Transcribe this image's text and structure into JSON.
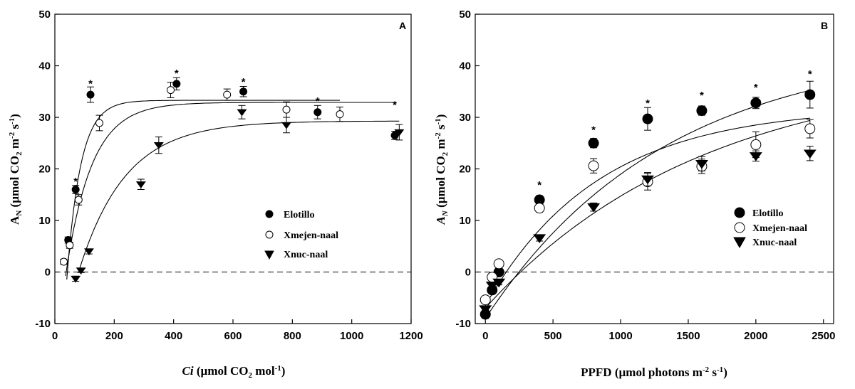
{
  "chart_data": [
    {
      "type": "scatter",
      "panel_label": "A",
      "title": "",
      "xlabel_italic": "Ci",
      "xlabel_main": " (µmol CO",
      "xlabel_sub": "2",
      "xlabel_rest": " mol",
      "xlabel_sup": "-1",
      "xlabel_close": ")",
      "ylabel_main": "A",
      "ylabel_sub": "N",
      "ylabel_mid": " (µmol CO",
      "ylabel_sub2": "2",
      "ylabel_m": " m",
      "ylabel_sup1": "-2",
      "ylabel_s": " s",
      "ylabel_sup2": "-1",
      "ylabel_close": ")",
      "xlim": [
        0,
        1200
      ],
      "ylim": [
        -10,
        50
      ],
      "xticks": [
        0,
        200,
        400,
        600,
        800,
        1000,
        1200
      ],
      "yticks": [
        -10,
        0,
        10,
        20,
        30,
        40,
        50
      ],
      "reference_line": 0,
      "legend": [
        {
          "name": "Elotillo",
          "marker": "filled-circle"
        },
        {
          "name": "Xmejen-naal",
          "marker": "open-circle"
        },
        {
          "name": "Xnuc-naal",
          "marker": "filled-triangle-down"
        }
      ],
      "series": [
        {
          "name": "Elotillo",
          "marker": "filled-circle",
          "points": [
            {
              "x": 45,
              "y": 6.2,
              "err": 0.6
            },
            {
              "x": 70,
              "y": 16.0,
              "err": 0.8
            },
            {
              "x": 120,
              "y": 34.4,
              "err": 1.5
            },
            {
              "x": 410,
              "y": 36.5,
              "err": 1.2
            },
            {
              "x": 635,
              "y": 35.0,
              "err": 1.0
            },
            {
              "x": 885,
              "y": 31.0,
              "err": 1.3
            },
            {
              "x": 1145,
              "y": 26.5,
              "err": 0.8
            }
          ],
          "fit": {
            "A": 33.3,
            "k": 0.0215,
            "x0": 42,
            "xmin": 40,
            "xmax": 960
          }
        },
        {
          "name": "Xmejen-naal",
          "marker": "open-circle",
          "points": [
            {
              "x": 30,
              "y": 2.0,
              "err": 0.5
            },
            {
              "x": 50,
              "y": 5.2,
              "err": 0.6
            },
            {
              "x": 80,
              "y": 14.0,
              "err": 1.0
            },
            {
              "x": 150,
              "y": 28.9,
              "err": 1.5
            },
            {
              "x": 390,
              "y": 35.3,
              "err": 1.5
            },
            {
              "x": 580,
              "y": 34.4,
              "err": 1.1
            },
            {
              "x": 780,
              "y": 31.5,
              "err": 1.5
            },
            {
              "x": 960,
              "y": 30.6,
              "err": 1.4
            }
          ],
          "fit": {
            "A": 32.9,
            "k": 0.0115,
            "x0": 38,
            "xmin": 36,
            "xmax": 1150
          }
        },
        {
          "name": "Xnuc-naal",
          "marker": "filled-triangle-down",
          "points": [
            {
              "x": 70,
              "y": -1.3,
              "err": 0.5
            },
            {
              "x": 88,
              "y": 0.3,
              "err": 0.4
            },
            {
              "x": 115,
              "y": 4.0,
              "err": 0.5
            },
            {
              "x": 290,
              "y": 17.0,
              "err": 1.0
            },
            {
              "x": 350,
              "y": 24.6,
              "err": 1.6
            },
            {
              "x": 630,
              "y": 31.0,
              "err": 1.3
            },
            {
              "x": 780,
              "y": 28.5,
              "err": 1.5
            },
            {
              "x": 1160,
              "y": 27.1,
              "err": 1.5
            }
          ],
          "fit": {
            "A": 29.3,
            "k": 0.0064,
            "x0": 80,
            "xmin": 80,
            "xmax": 1160
          }
        }
      ],
      "annotations": [
        {
          "text": "*",
          "x": 120,
          "y": 37.0
        },
        {
          "text": "*",
          "x": 70,
          "y": 18.0
        },
        {
          "text": "*",
          "x": 410,
          "y": 39.0
        },
        {
          "text": "*",
          "x": 635,
          "y": 37.3
        },
        {
          "text": "*",
          "x": 885,
          "y": 33.6
        },
        {
          "text": "*",
          "x": 1145,
          "y": 32.8
        }
      ]
    },
    {
      "type": "scatter",
      "panel_label": "B",
      "title": "",
      "xlabel_main": "PPFD (µmol photons m",
      "xlabel_sup1": "-2",
      "xlabel_s": " s",
      "xlabel_sup2": "-1",
      "xlabel_close": ")",
      "ylabel_main": "A",
      "ylabel_sub": "N",
      "ylabel_mid": " (µmol CO",
      "ylabel_sub2": "2",
      "ylabel_m": " m",
      "ylabel_sup1": "-2",
      "ylabel_s": " s",
      "ylabel_sup2": "-1",
      "ylabel_close": ")",
      "xlim": [
        -75,
        2575
      ],
      "ylim": [
        -10,
        50
      ],
      "xticks": [
        0,
        500,
        1000,
        1500,
        2000,
        2500
      ],
      "yticks": [
        -10,
        0,
        10,
        20,
        30,
        40,
        50
      ],
      "reference_line": 0,
      "legend": [
        {
          "name": "Elotillo",
          "marker": "filled-circle"
        },
        {
          "name": "Xmejen-naal",
          "marker": "open-circle"
        },
        {
          "name": "Xnuc-naal",
          "marker": "filled-triangle-down"
        }
      ],
      "series": [
        {
          "name": "Elotillo",
          "marker": "filled-circle",
          "points": [
            {
              "x": 0,
              "y": -8.2,
              "err": 0.8
            },
            {
              "x": 50,
              "y": -3.5,
              "err": 0.6
            },
            {
              "x": 100,
              "y": 0.0,
              "err": 0.5
            },
            {
              "x": 400,
              "y": 14.0,
              "err": 0.8
            },
            {
              "x": 800,
              "y": 25.0,
              "err": 0.9
            },
            {
              "x": 1200,
              "y": 29.7,
              "err": 2.2
            },
            {
              "x": 1600,
              "y": 31.3,
              "err": 0.9
            },
            {
              "x": 2000,
              "y": 32.8,
              "err": 1.1
            },
            {
              "x": 2400,
              "y": 34.4,
              "err": 2.6
            }
          ],
          "fit": {
            "Amax": 44.0,
            "k": 0.00075,
            "Rd": -9.0,
            "xmin": 0,
            "xmax": 2400
          }
        },
        {
          "name": "Xmejen-naal",
          "marker": "open-circle",
          "points": [
            {
              "x": 0,
              "y": -5.4,
              "err": 0.6
            },
            {
              "x": 50,
              "y": -1.0,
              "err": 0.6
            },
            {
              "x": 100,
              "y": 1.6,
              "err": 0.6
            },
            {
              "x": 400,
              "y": 12.4,
              "err": 0.8
            },
            {
              "x": 800,
              "y": 20.6,
              "err": 1.4
            },
            {
              "x": 1200,
              "y": 17.5,
              "err": 1.6
            },
            {
              "x": 1600,
              "y": 20.5,
              "err": 1.4
            },
            {
              "x": 2000,
              "y": 24.7,
              "err": 2.5
            },
            {
              "x": 2400,
              "y": 27.8,
              "err": 1.8
            }
          ],
          "fit": {
            "Amax": 32.0,
            "k": 0.0012,
            "Rd": -6.5,
            "xmin": 0,
            "xmax": 2400
          }
        },
        {
          "name": "Xnuc-naal",
          "marker": "filled-triangle-down",
          "points": [
            {
              "x": 0,
              "y": -7.2,
              "err": 0.5
            },
            {
              "x": 50,
              "y": -2.6,
              "err": 0.5
            },
            {
              "x": 100,
              "y": -2.0,
              "err": 0.5
            },
            {
              "x": 400,
              "y": 6.6,
              "err": 0.6
            },
            {
              "x": 800,
              "y": 12.6,
              "err": 0.8
            },
            {
              "x": 1200,
              "y": 18.0,
              "err": 1.3
            },
            {
              "x": 1600,
              "y": 21.0,
              "err": 1.4
            },
            {
              "x": 2000,
              "y": 22.5,
              "err": 1.0
            },
            {
              "x": 2400,
              "y": 23.0,
              "err": 1.4
            }
          ],
          "fit": {
            "Amax": 40.0,
            "k": 0.00062,
            "Rd": -7.0,
            "xmin": 0,
            "xmax": 2400
          }
        }
      ],
      "annotations": [
        {
          "text": "*",
          "x": 400,
          "y": 17.3
        },
        {
          "text": "*",
          "x": 800,
          "y": 28.0
        },
        {
          "text": "*",
          "x": 1200,
          "y": 33.2
        },
        {
          "text": "*",
          "x": 1600,
          "y": 34.7
        },
        {
          "text": "*",
          "x": 2000,
          "y": 36.2
        },
        {
          "text": "*",
          "x": 2400,
          "y": 38.8
        }
      ]
    }
  ]
}
